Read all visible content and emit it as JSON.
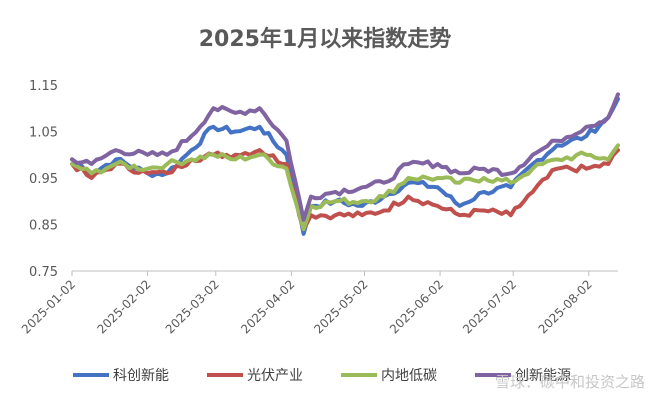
{
  "chart_data": {
    "type": "line",
    "title": "2025年1月以来指数走势",
    "xlabel": "",
    "ylabel": "",
    "ylim": [
      0.75,
      1.15
    ],
    "yticks": [
      "0.75",
      "0.85",
      "0.95",
      "1.05",
      "1.15"
    ],
    "xticks": [
      "2025-01-02",
      "2025-02-02",
      "2025-03-02",
      "2025-04-02",
      "2025-05-02",
      "2025-06-02",
      "2025-07-02",
      "2025-08-02"
    ],
    "legend_position": "bottom",
    "grid": false,
    "x": [
      "2025-01-02",
      "2025-01-10",
      "2025-01-20",
      "2025-02-02",
      "2025-02-10",
      "2025-02-20",
      "2025-03-01",
      "2025-03-10",
      "2025-03-20",
      "2025-03-31",
      "2025-04-07",
      "2025-04-10",
      "2025-04-20",
      "2025-05-01",
      "2025-05-10",
      "2025-05-20",
      "2025-06-01",
      "2025-06-10",
      "2025-06-20",
      "2025-07-01",
      "2025-07-10",
      "2025-07-20",
      "2025-08-01",
      "2025-08-10",
      "2025-08-14"
    ],
    "series": [
      {
        "name": "科创新能",
        "color": "#4472C4",
        "values": [
          0.99,
          0.96,
          0.99,
          0.96,
          0.96,
          1.01,
          1.06,
          1.05,
          1.06,
          1.0,
          0.83,
          0.89,
          0.9,
          0.89,
          0.91,
          0.94,
          0.93,
          0.89,
          0.92,
          0.93,
          0.98,
          1.02,
          1.04,
          1.08,
          1.12
        ]
      },
      {
        "name": "光伏产业",
        "color": "#C0504D",
        "values": [
          0.98,
          0.95,
          0.98,
          0.96,
          0.96,
          0.99,
          1.0,
          1.0,
          1.01,
          0.98,
          0.84,
          0.87,
          0.87,
          0.87,
          0.88,
          0.91,
          0.89,
          0.87,
          0.88,
          0.87,
          0.92,
          0.97,
          0.97,
          0.98,
          1.01
        ]
      },
      {
        "name": "内地低碳",
        "color": "#9BBB59",
        "values": [
          0.98,
          0.96,
          0.98,
          0.97,
          0.98,
          0.99,
          1.0,
          0.99,
          1.0,
          0.97,
          0.84,
          0.89,
          0.9,
          0.9,
          0.91,
          0.95,
          0.95,
          0.94,
          0.95,
          0.94,
          0.97,
          0.99,
          1.0,
          0.99,
          1.02
        ]
      },
      {
        "name": "创新能源",
        "color": "#8064A2",
        "values": [
          0.99,
          0.98,
          1.01,
          1.0,
          1.0,
          1.04,
          1.1,
          1.09,
          1.1,
          1.03,
          0.86,
          0.91,
          0.92,
          0.93,
          0.94,
          0.98,
          0.98,
          0.96,
          0.97,
          0.96,
          1.0,
          1.03,
          1.06,
          1.08,
          1.13
        ]
      }
    ]
  },
  "watermark": "雪球：碳中和投资之路"
}
